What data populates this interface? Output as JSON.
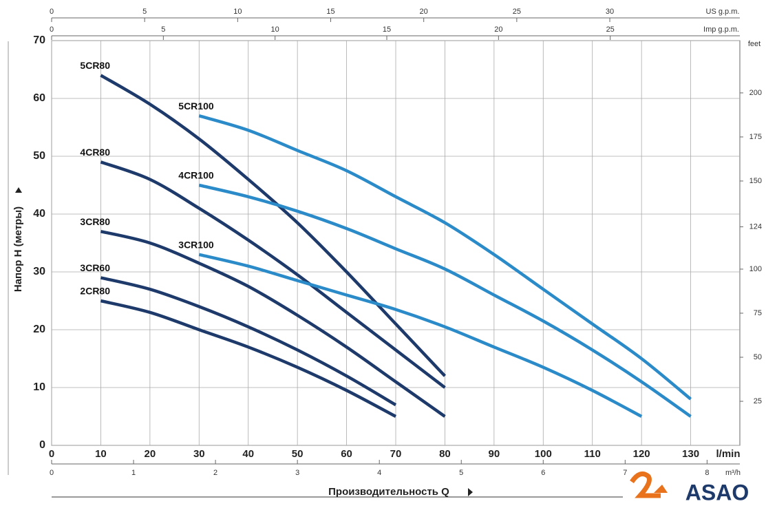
{
  "chart_data": {
    "type": "line",
    "y_label": "Напор Н (метры)",
    "x_title": "Производительность Q",
    "x_unit": "l/min",
    "xlim": [
      0,
      140
    ],
    "xticks": [
      0,
      10,
      20,
      30,
      40,
      50,
      60,
      70,
      80,
      90,
      100,
      110,
      120,
      130
    ],
    "ylim": [
      0,
      70
    ],
    "yticks": [
      0,
      10,
      20,
      30,
      40,
      50,
      60,
      70
    ],
    "grid": true,
    "us_gpm_axis": {
      "label": "US g.p.m.",
      "lim": [
        0,
        36.99
      ],
      "ticks": [
        0,
        5,
        10,
        15,
        20,
        25,
        30
      ]
    },
    "imp_gpm_axis": {
      "label": "Imp g.p.m.",
      "lim": [
        0,
        30.8
      ],
      "ticks": [
        0,
        5,
        10,
        15,
        20,
        25
      ]
    },
    "m3h_axis": {
      "label": "m³/h",
      "lim": [
        0,
        8.4
      ],
      "ticks": [
        0,
        1,
        2,
        3,
        4,
        5,
        6,
        7,
        8
      ]
    },
    "feet_axis": {
      "label": "feet",
      "lim": [
        0,
        229.66
      ],
      "ticks": [
        25,
        50,
        75,
        100,
        124,
        150,
        175,
        200
      ]
    },
    "series": [
      {
        "name": "5CR80",
        "color": "#1d3a6b",
        "x": [
          10,
          20,
          30,
          40,
          50,
          60,
          70,
          80
        ],
        "values": [
          64,
          59,
          53,
          46,
          38.5,
          30,
          21,
          12
        ]
      },
      {
        "name": "4CR80",
        "color": "#1d3a6b",
        "x": [
          10,
          20,
          30,
          40,
          50,
          60,
          70,
          80
        ],
        "values": [
          49,
          46,
          41,
          35.5,
          29.5,
          23,
          16.5,
          10
        ]
      },
      {
        "name": "3CR80",
        "color": "#1d3a6b",
        "x": [
          10,
          20,
          30,
          40,
          50,
          60,
          70,
          80
        ],
        "values": [
          37,
          35,
          31.5,
          27.5,
          22.5,
          17,
          11,
          5
        ]
      },
      {
        "name": "3CR60",
        "color": "#1d3a6b",
        "x": [
          10,
          20,
          30,
          40,
          50,
          60,
          70
        ],
        "values": [
          29,
          27,
          24,
          20.5,
          16.5,
          12,
          7
        ]
      },
      {
        "name": "2CR80",
        "color": "#1d3a6b",
        "x": [
          10,
          20,
          30,
          40,
          50,
          60,
          70
        ],
        "values": [
          25,
          23,
          20,
          17,
          13.5,
          9.5,
          5
        ]
      },
      {
        "name": "5CR100",
        "color": "#2b8bc9",
        "x": [
          30,
          40,
          50,
          60,
          70,
          80,
          90,
          100,
          110,
          120,
          130
        ],
        "values": [
          57,
          54.5,
          51,
          47.5,
          43,
          38.5,
          33,
          27,
          21,
          15,
          8
        ]
      },
      {
        "name": "4CR100",
        "color": "#2b8bc9",
        "x": [
          30,
          40,
          50,
          60,
          70,
          80,
          90,
          100,
          110,
          120,
          130
        ],
        "values": [
          45,
          43,
          40.5,
          37.5,
          34,
          30.5,
          26,
          21.5,
          16.5,
          11,
          5
        ]
      },
      {
        "name": "3CR100",
        "color": "#2b8bc9",
        "x": [
          30,
          40,
          50,
          60,
          70,
          80,
          90,
          100,
          110,
          120
        ],
        "values": [
          33,
          31,
          28.5,
          26,
          23.5,
          20.5,
          17,
          13.5,
          9.5,
          5
        ]
      }
    ],
    "brand": "ASAO"
  }
}
